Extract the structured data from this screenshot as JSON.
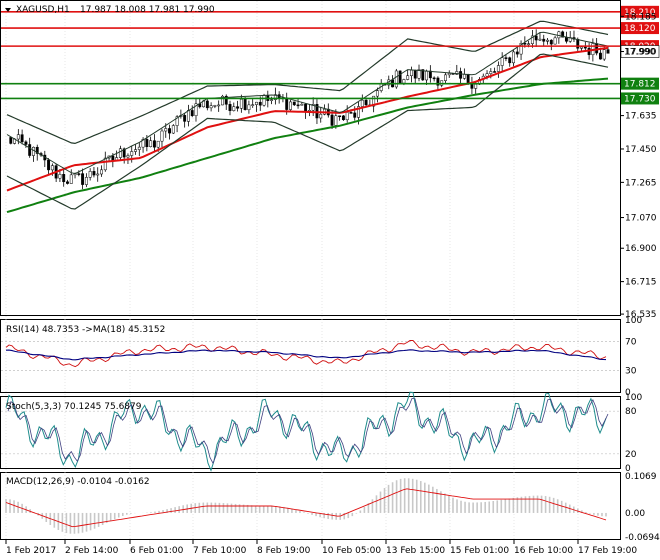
{
  "main": {
    "symbol": "XAGUSD,H1",
    "ohlc": "17.987 18.008 17.981 17.990",
    "ylim": [
      16.53,
      18.27
    ],
    "ticks": [
      "18.185",
      "17.990",
      "17.635",
      "17.450",
      "17.265",
      "17.070",
      "16.900",
      "16.715",
      "16.535"
    ],
    "tick_values": [
      18.185,
      17.99,
      17.635,
      17.45,
      17.265,
      17.07,
      16.9,
      16.715,
      16.535
    ],
    "levels": [
      {
        "value": 18.21,
        "label": "18.210",
        "color": "#e01010"
      },
      {
        "value": 18.12,
        "label": "18.120",
        "color": "#e01010"
      },
      {
        "value": 18.02,
        "label": "18.020",
        "color": "#e01010"
      },
      {
        "value": 17.812,
        "label": "17.812",
        "color": "#108010"
      },
      {
        "value": 17.73,
        "label": "17.730",
        "color": "#108010"
      }
    ],
    "price_badge": {
      "value": 17.99,
      "label": "17.990"
    }
  },
  "chart_data": [
    {
      "type": "line",
      "title": "XAGUSD,H1",
      "x": [
        "1 Feb 2017",
        "2 Feb 14:00",
        "6 Feb 01:00",
        "7 Feb 10:00",
        "8 Feb 19:00",
        "10 Feb 05:00",
        "13 Feb 15:00",
        "15 Feb 01:00",
        "16 Feb 10:00",
        "17 Feb 19:00"
      ],
      "series": [
        {
          "values": [
            17.5,
            17.28,
            17.46,
            17.7,
            17.72,
            17.62,
            17.86,
            17.83,
            18.07,
            17.99
          ]
        },
        {
          "values": [
            17.1,
            17.21,
            17.29,
            17.4,
            17.51,
            17.58,
            17.68,
            17.75,
            17.81,
            17.84
          ]
        },
        {
          "values": [
            17.22,
            17.36,
            17.4,
            17.57,
            17.66,
            17.65,
            17.74,
            17.82,
            17.96,
            18.01
          ]
        }
      ],
      "ylim": [
        16.53,
        18.27
      ]
    },
    {
      "type": "line",
      "title": "RSI(14) 48.7353 ->MA(18) 45.3152",
      "series": [
        {
          "values": [
            62,
            38,
            58,
            63,
            52,
            40,
            68,
            55,
            63,
            49
          ]
        },
        {
          "values": [
            58,
            45,
            52,
            58,
            55,
            47,
            58,
            55,
            58,
            45
          ]
        }
      ],
      "levels": [
        70,
        30
      ],
      "ylim": [
        0,
        100
      ]
    },
    {
      "type": "line",
      "title": "Stoch(5,3,3) 70.1245 75.6879",
      "series": [
        {
          "values": [
            85,
            15,
            90,
            20,
            80,
            15,
            90,
            30,
            85,
            70
          ]
        },
        {
          "values": [
            80,
            20,
            85,
            25,
            75,
            20,
            85,
            35,
            80,
            76
          ]
        }
      ],
      "levels": [
        80,
        20
      ],
      "ylim": [
        0,
        100
      ]
    },
    {
      "type": "bar",
      "title": "MACD(12,26,9) -0.0104 -0.0162",
      "series": [
        {
          "values": [
            0.04,
            -0.06,
            0.0,
            0.03,
            0.02,
            -0.02,
            0.1,
            0.03,
            0.05,
            -0.01
          ]
        },
        {
          "values": [
            0.03,
            -0.04,
            -0.01,
            0.02,
            0.02,
            -0.01,
            0.07,
            0.04,
            0.04,
            -0.02
          ]
        }
      ],
      "ticks": [
        "0.1069",
        "0.00",
        "-0.0694"
      ],
      "ylim": [
        -0.075,
        0.115
      ]
    }
  ],
  "panes": {
    "rsi": {
      "title": "RSI(14) 48.7353 ->MA(18) 45.3152",
      "ticks": [
        "100",
        "70",
        "30",
        "0"
      ]
    },
    "stoch": {
      "title": "Stoch(5,3,3) 70.1245 75.6879",
      "ticks": [
        "100",
        "80",
        "20",
        "0"
      ]
    },
    "macd": {
      "title": "MACD(12,26,9) -0.0104 -0.0162",
      "ticks": [
        "0.1069",
        "0.00",
        "-0.0694"
      ]
    }
  },
  "xaxis": [
    "1 Feb 2017",
    "2 Feb 14:00",
    "6 Feb 01:00",
    "7 Feb 10:00",
    "8 Feb 19:00",
    "10 Feb 05:00",
    "13 Feb 15:00",
    "15 Feb 01:00",
    "16 Feb 10:00",
    "17 Feb 19:00"
  ],
  "colors": {
    "sma_red": "#e01010",
    "sma_green": "#108010",
    "band": "#233a2a",
    "up": "#ffffff",
    "down": "#000000",
    "rsi": "#d01010",
    "rsi_ma": "#000080",
    "stoch_main": "#1e8c8c",
    "stoch_sig": "#404080",
    "macd_hist": "#c8c8c8",
    "macd_sig": "#e01010"
  }
}
